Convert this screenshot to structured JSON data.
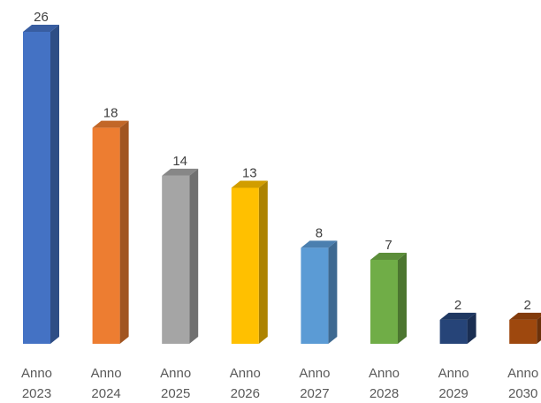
{
  "chart_data": {
    "type": "bar",
    "categories": [
      [
        "Anno",
        "2023"
      ],
      [
        "Anno",
        "2024"
      ],
      [
        "Anno",
        "2025"
      ],
      [
        "Anno",
        "2026"
      ],
      [
        "Anno",
        "2027"
      ],
      [
        "Anno",
        "2028"
      ],
      [
        "Anno",
        "2029"
      ],
      [
        "Anno",
        "2030"
      ]
    ],
    "values": [
      26,
      18,
      14,
      13,
      8,
      7,
      2,
      2
    ],
    "colors": [
      "#4472C4",
      "#ED7D31",
      "#A5A5A5",
      "#FFC000",
      "#5B9BD5",
      "#70AD47",
      "#264478",
      "#9E480E"
    ],
    "title": "",
    "xlabel": "",
    "ylabel": "",
    "ylim": [
      0,
      26
    ],
    "grid": false,
    "legend": "none",
    "style": "3d-column"
  }
}
